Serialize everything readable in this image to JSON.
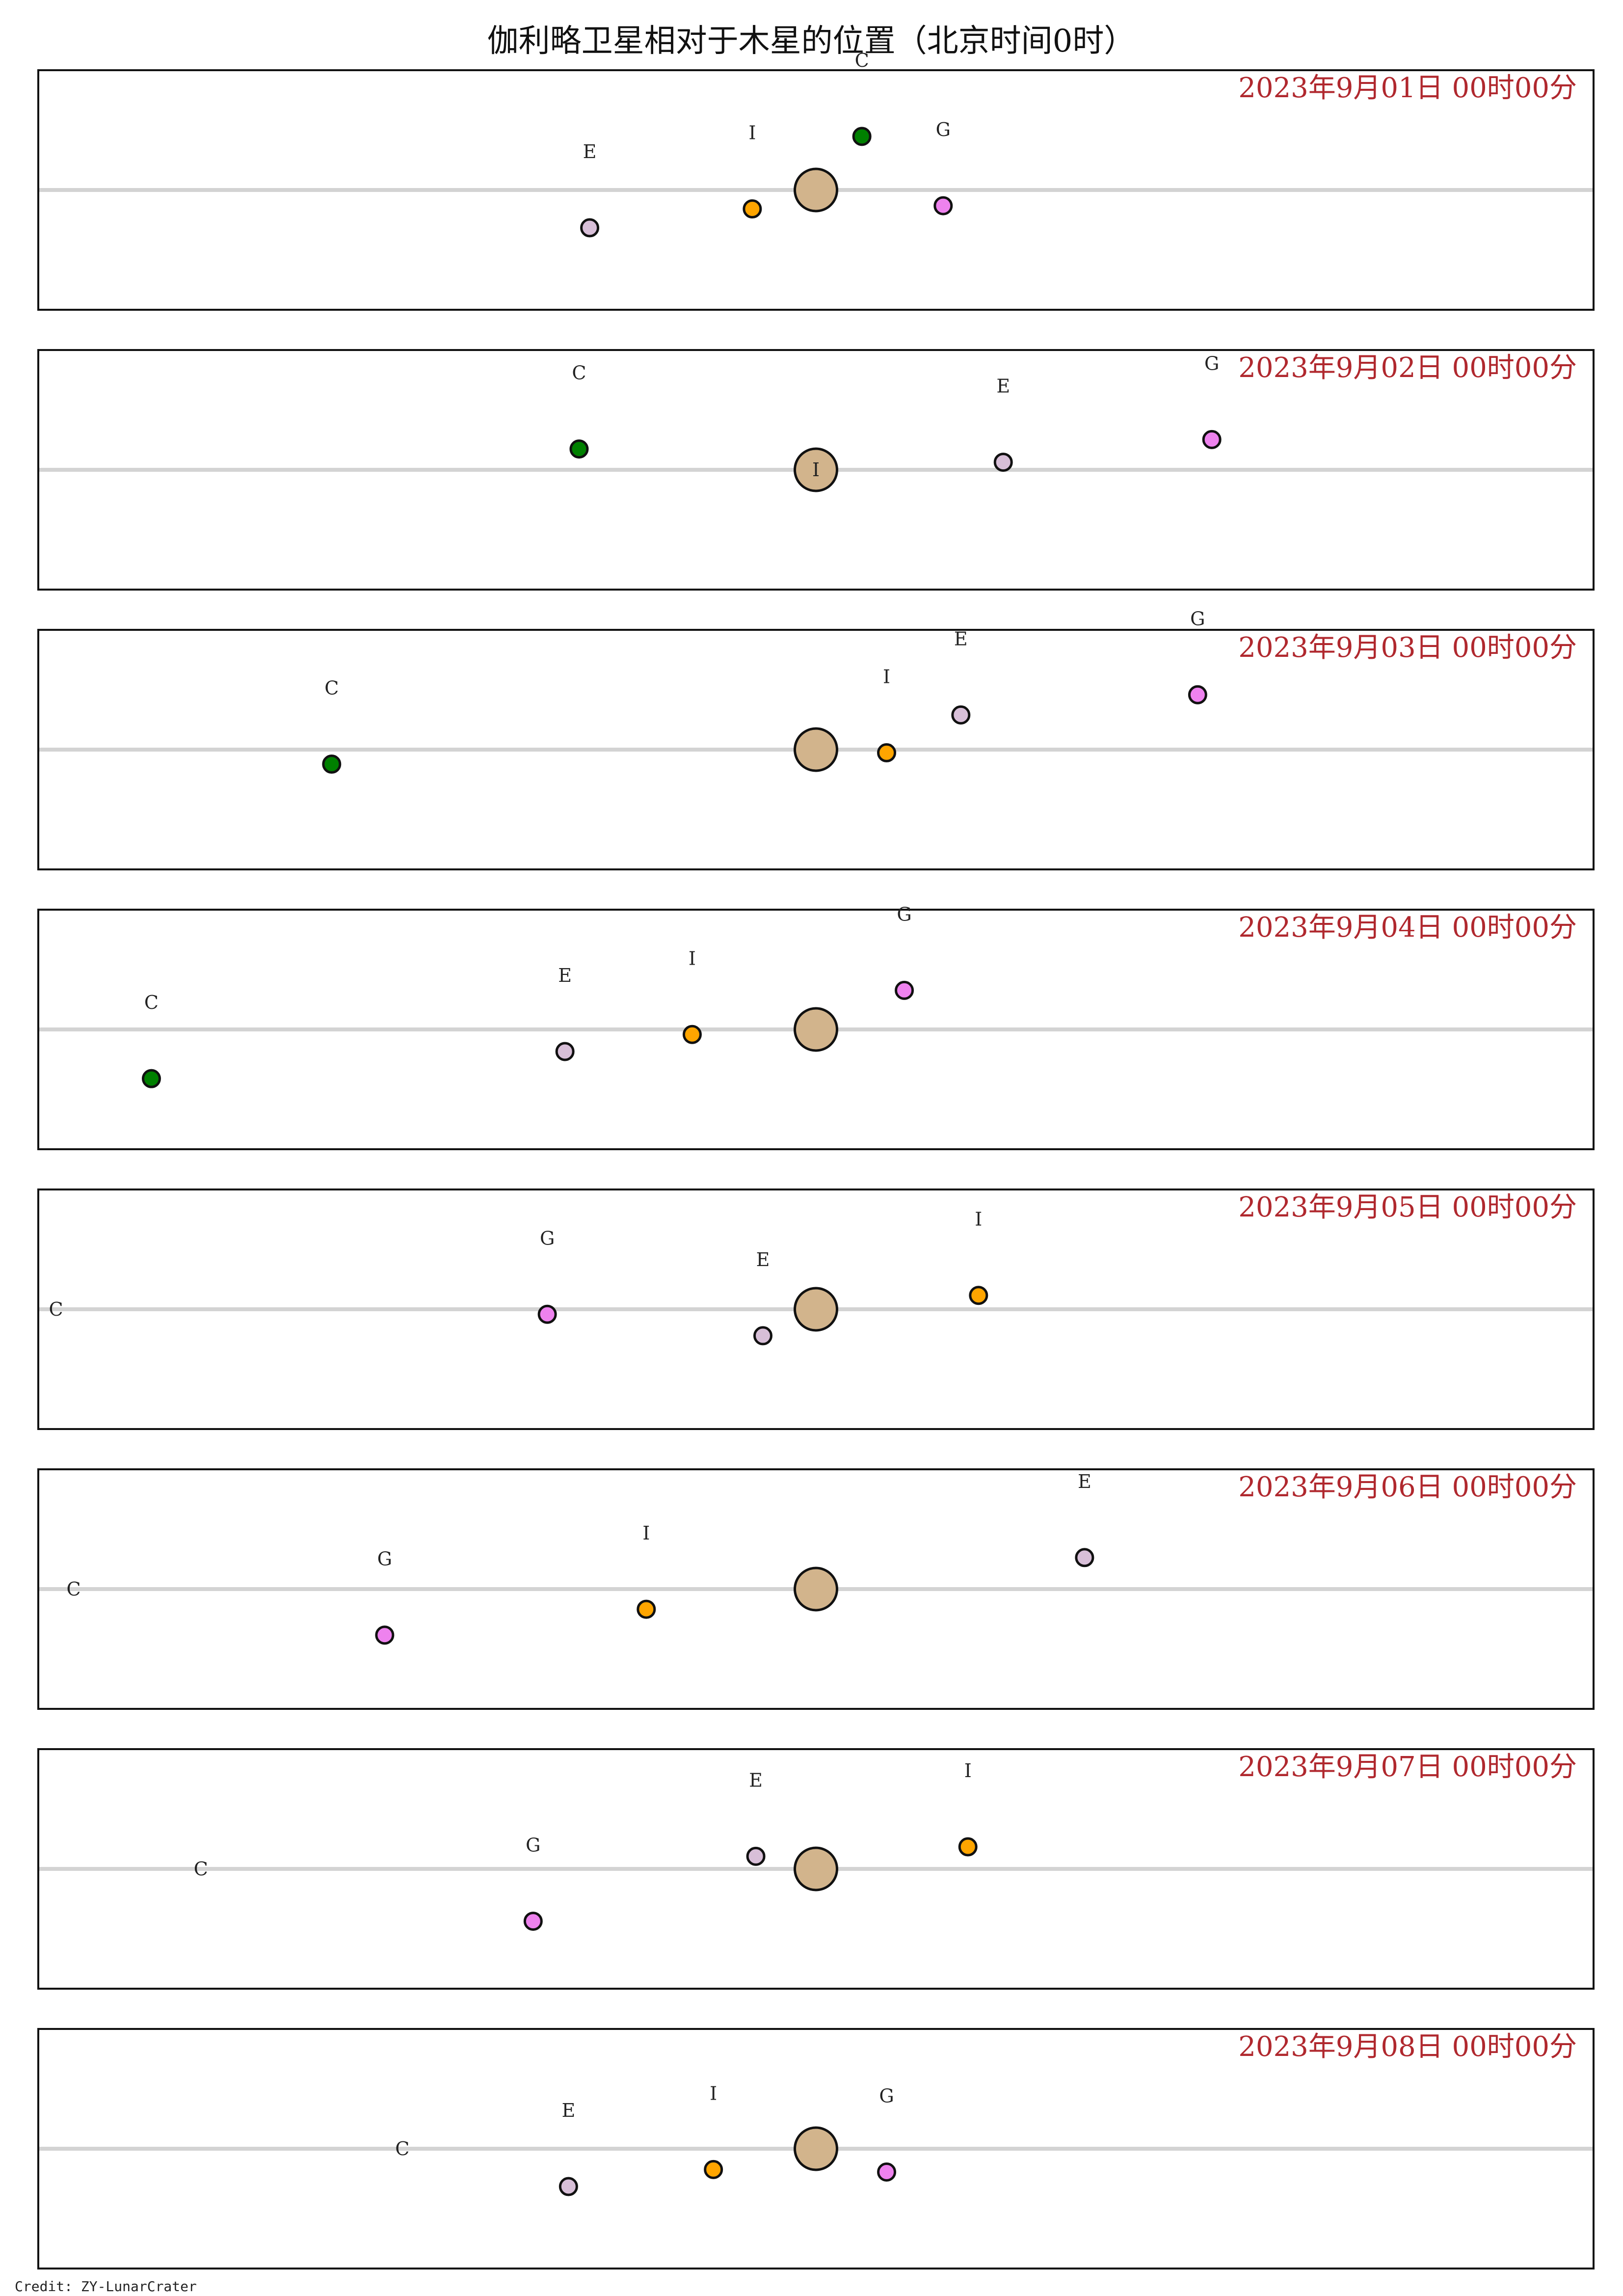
{
  "chart_data": {
    "type": "scatter",
    "title": "伽利略卫星相对于木星的位置（北京时间0时）",
    "credit": "Credit: ZY-LunarCrater",
    "planet": {
      "name": "木星",
      "color": "#d2b48c"
    },
    "moons": [
      {
        "key": "I",
        "color": "#ffa500"
      },
      {
        "key": "E",
        "color": "#d8bfd8"
      },
      {
        "key": "G",
        "color": "#ee82ee"
      },
      {
        "key": "C",
        "color": "#008000"
      }
    ],
    "xlim": [
      -22,
      22
    ],
    "ylim": [
      -1.9,
      1.9
    ],
    "panels": [
      {
        "date_label": "2023年9月01日  00时00分",
        "positions": [
          {
            "key": "C",
            "x": 1.3,
            "y": 0.85,
            "visible": true
          },
          {
            "key": "I",
            "x": -1.8,
            "y": -0.3,
            "visible": true
          },
          {
            "key": "G",
            "x": 3.6,
            "y": -0.25,
            "visible": true
          },
          {
            "key": "E",
            "x": -6.4,
            "y": -0.6,
            "visible": true
          }
        ]
      },
      {
        "date_label": "2023年9月02日  00时00分",
        "positions": [
          {
            "key": "C",
            "x": -6.7,
            "y": 0.33,
            "visible": true
          },
          {
            "key": "I",
            "x": 0.0,
            "y": 0.0,
            "visible": false
          },
          {
            "key": "E",
            "x": 5.3,
            "y": 0.12,
            "visible": true
          },
          {
            "key": "G",
            "x": 11.2,
            "y": 0.48,
            "visible": true
          }
        ]
      },
      {
        "date_label": "2023年9月03日  00时00分",
        "positions": [
          {
            "key": "C",
            "x": -13.7,
            "y": -0.23,
            "visible": true
          },
          {
            "key": "I",
            "x": 2.0,
            "y": -0.05,
            "visible": true
          },
          {
            "key": "E",
            "x": 4.1,
            "y": 0.55,
            "visible": true
          },
          {
            "key": "G",
            "x": 10.8,
            "y": 0.87,
            "visible": true
          }
        ]
      },
      {
        "date_label": "2023年9月04日  00时00分",
        "positions": [
          {
            "key": "C",
            "x": -18.8,
            "y": -0.78,
            "visible": true
          },
          {
            "key": "E",
            "x": -7.1,
            "y": -0.35,
            "visible": true
          },
          {
            "key": "I",
            "x": -3.5,
            "y": -0.08,
            "visible": true
          },
          {
            "key": "G",
            "x": 2.5,
            "y": 0.62,
            "visible": true
          }
        ]
      },
      {
        "date_label": "2023年9月05日  00时00分",
        "positions": [
          {
            "key": "C",
            "x": -21.5,
            "y": 0.0,
            "visible": false
          },
          {
            "key": "G",
            "x": -7.6,
            "y": -0.08,
            "visible": true
          },
          {
            "key": "E",
            "x": -1.5,
            "y": -0.42,
            "visible": true
          },
          {
            "key": "I",
            "x": 4.6,
            "y": 0.22,
            "visible": true
          }
        ]
      },
      {
        "date_label": "2023年9月06日  00时00分",
        "positions": [
          {
            "key": "C",
            "x": -21.0,
            "y": 0.0,
            "visible": false
          },
          {
            "key": "G",
            "x": -12.2,
            "y": -0.73,
            "visible": true
          },
          {
            "key": "I",
            "x": -4.8,
            "y": -0.32,
            "visible": true
          },
          {
            "key": "E",
            "x": 7.6,
            "y": 0.5,
            "visible": true
          }
        ]
      },
      {
        "date_label": "2023年9月07日  00时00分",
        "positions": [
          {
            "key": "C",
            "x": -17.4,
            "y": 0.0,
            "visible": false
          },
          {
            "key": "G",
            "x": -8.0,
            "y": -0.83,
            "visible": true
          },
          {
            "key": "E",
            "x": -1.7,
            "y": 0.2,
            "visible": true
          },
          {
            "key": "I",
            "x": 4.3,
            "y": 0.35,
            "visible": true
          }
        ]
      },
      {
        "date_label": "2023年9月08日  00时00分",
        "positions": [
          {
            "key": "C",
            "x": -11.7,
            "y": 0.0,
            "visible": false
          },
          {
            "key": "E",
            "x": -7.0,
            "y": -0.6,
            "visible": true
          },
          {
            "key": "I",
            "x": -2.9,
            "y": -0.33,
            "visible": true
          },
          {
            "key": "G",
            "x": 2.0,
            "y": -0.37,
            "visible": true
          }
        ]
      }
    ]
  }
}
